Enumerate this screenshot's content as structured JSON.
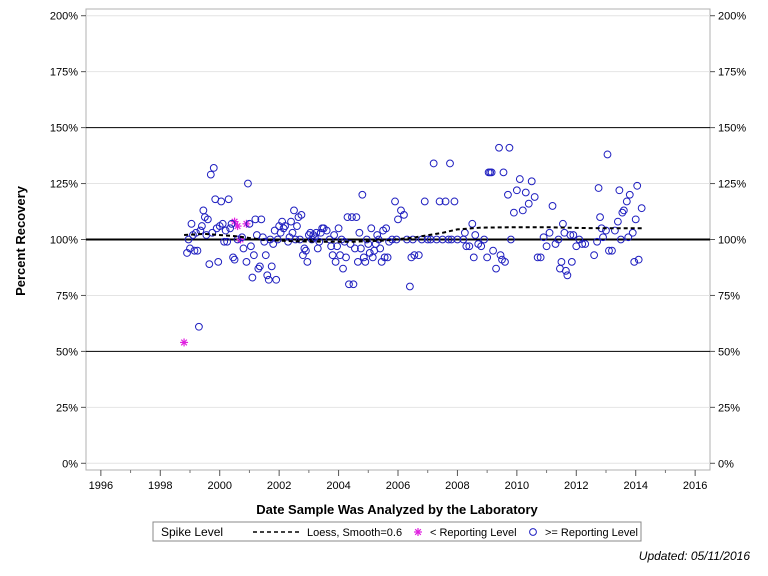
{
  "chart_data": {
    "type": "scatter",
    "xlabel": "Date Sample Was Analyzed by the Laboratory",
    "ylabel": "Percent Recovery",
    "xlim": [
      1995.5,
      2016.5
    ],
    "ylim": [
      -3,
      203
    ],
    "x_ticks": [
      1996,
      1998,
      2000,
      2002,
      2004,
      2006,
      2008,
      2010,
      2012,
      2014,
      2016
    ],
    "y_ticks": [
      0,
      25,
      50,
      75,
      100,
      125,
      150,
      175,
      200
    ],
    "y_tick_labels": [
      "0%",
      "25%",
      "50%",
      "75%",
      "100%",
      "125%",
      "150%",
      "175%",
      "200%"
    ],
    "reference_lines": {
      "spike_level": 100,
      "limits": [
        50,
        150
      ]
    },
    "legend": {
      "title": "Spike Level",
      "position": "bottom",
      "entries": [
        {
          "key": "loess",
          "label": "Loess, Smooth=0.6"
        },
        {
          "key": "below",
          "label": "< Reporting Level"
        },
        {
          "key": "above",
          "label": ">= Reporting Level"
        }
      ]
    },
    "colors": {
      "above": "#2020c0",
      "below": "#e020e0",
      "loess": "#000000",
      "reference": "#000000"
    },
    "series": [
      {
        "name": "< Reporting Level",
        "marker": "asterisk",
        "points": [
          [
            1998.8,
            54
          ],
          [
            2000.5,
            108
          ],
          [
            2000.6,
            106
          ],
          [
            2000.7,
            100
          ],
          [
            2000.9,
            107
          ]
        ]
      },
      {
        "name": ">= Reporting Level",
        "marker": "circle",
        "points": [
          [
            1998.9,
            94
          ],
          [
            1998.95,
            100
          ],
          [
            1999.0,
            96
          ],
          [
            1999.05,
            107
          ],
          [
            1999.1,
            102
          ],
          [
            1999.15,
            95
          ],
          [
            1999.2,
            103
          ],
          [
            1999.25,
            95
          ],
          [
            1999.3,
            61
          ],
          [
            1999.35,
            104
          ],
          [
            1999.4,
            106
          ],
          [
            1999.45,
            113
          ],
          [
            1999.5,
            110
          ],
          [
            1999.55,
            102
          ],
          [
            1999.6,
            109
          ],
          [
            1999.65,
            89
          ],
          [
            1999.7,
            129
          ],
          [
            1999.75,
            103
          ],
          [
            1999.8,
            132
          ],
          [
            1999.85,
            118
          ],
          [
            1999.9,
            105
          ],
          [
            1999.95,
            90
          ],
          [
            2000.0,
            106
          ],
          [
            2000.05,
            117
          ],
          [
            2000.1,
            107
          ],
          [
            2000.15,
            99
          ],
          [
            2000.2,
            104
          ],
          [
            2000.25,
            99
          ],
          [
            2000.3,
            118
          ],
          [
            2000.35,
            105
          ],
          [
            2000.4,
            107
          ],
          [
            2000.45,
            92
          ],
          [
            2000.5,
            91
          ],
          [
            2000.6,
            100
          ],
          [
            2000.75,
            101
          ],
          [
            2000.8,
            96
          ],
          [
            2000.9,
            90
          ],
          [
            2000.95,
            125
          ],
          [
            2001.0,
            107
          ],
          [
            2001.05,
            97
          ],
          [
            2001.1,
            83
          ],
          [
            2001.15,
            93
          ],
          [
            2001.2,
            109
          ],
          [
            2001.25,
            102
          ],
          [
            2001.3,
            87
          ],
          [
            2001.35,
            88
          ],
          [
            2001.4,
            109
          ],
          [
            2001.45,
            101
          ],
          [
            2001.5,
            99
          ],
          [
            2001.55,
            93
          ],
          [
            2001.6,
            84
          ],
          [
            2001.65,
            82
          ],
          [
            2001.7,
            100
          ],
          [
            2001.75,
            88
          ],
          [
            2001.8,
            98
          ],
          [
            2001.85,
            104
          ],
          [
            2001.9,
            82
          ],
          [
            2001.95,
            100
          ],
          [
            2002.0,
            106
          ],
          [
            2002.05,
            103
          ],
          [
            2002.1,
            108
          ],
          [
            2002.15,
            105
          ],
          [
            2002.2,
            106
          ],
          [
            2002.3,
            99
          ],
          [
            2002.35,
            101
          ],
          [
            2002.4,
            108
          ],
          [
            2002.45,
            103
          ],
          [
            2002.5,
            113
          ],
          [
            2002.55,
            100
          ],
          [
            2002.6,
            106
          ],
          [
            2002.65,
            110
          ],
          [
            2002.7,
            100
          ],
          [
            2002.75,
            111
          ],
          [
            2002.8,
            93
          ],
          [
            2002.85,
            96
          ],
          [
            2002.9,
            95
          ],
          [
            2002.95,
            90
          ],
          [
            2003.0,
            102
          ],
          [
            2003.05,
            103
          ],
          [
            2003.1,
            100
          ],
          [
            2003.15,
            102
          ],
          [
            2003.2,
            101
          ],
          [
            2003.25,
            103
          ],
          [
            2003.3,
            96
          ],
          [
            2003.35,
            99
          ],
          [
            2003.4,
            103
          ],
          [
            2003.45,
            105
          ],
          [
            2003.5,
            105
          ],
          [
            2003.6,
            104
          ],
          [
            2003.7,
            100
          ],
          [
            2003.75,
            97
          ],
          [
            2003.8,
            93
          ],
          [
            2003.85,
            102
          ],
          [
            2003.9,
            90
          ],
          [
            2003.95,
            97
          ],
          [
            2004.0,
            105
          ],
          [
            2004.05,
            93
          ],
          [
            2004.1,
            100
          ],
          [
            2004.15,
            87
          ],
          [
            2004.2,
            99
          ],
          [
            2004.25,
            92
          ],
          [
            2004.3,
            110
          ],
          [
            2004.35,
            80
          ],
          [
            2004.4,
            98
          ],
          [
            2004.45,
            110
          ],
          [
            2004.5,
            80
          ],
          [
            2004.55,
            96
          ],
          [
            2004.6,
            110
          ],
          [
            2004.65,
            90
          ],
          [
            2004.7,
            103
          ],
          [
            2004.75,
            96
          ],
          [
            2004.8,
            120
          ],
          [
            2004.85,
            92
          ],
          [
            2004.9,
            90
          ],
          [
            2004.95,
            100
          ],
          [
            2005.0,
            98
          ],
          [
            2005.05,
            94
          ],
          [
            2005.1,
            105
          ],
          [
            2005.15,
            92
          ],
          [
            2005.2,
            95
          ],
          [
            2005.25,
            98
          ],
          [
            2005.3,
            102
          ],
          [
            2005.35,
            100
          ],
          [
            2005.4,
            96
          ],
          [
            2005.45,
            90
          ],
          [
            2005.5,
            104
          ],
          [
            2005.55,
            92
          ],
          [
            2005.6,
            105
          ],
          [
            2005.65,
            92
          ],
          [
            2005.7,
            99
          ],
          [
            2005.8,
            100
          ],
          [
            2005.9,
            117
          ],
          [
            2005.95,
            100
          ],
          [
            2006.0,
            109
          ],
          [
            2006.1,
            113
          ],
          [
            2006.2,
            111
          ],
          [
            2006.3,
            100
          ],
          [
            2006.4,
            79
          ],
          [
            2006.45,
            92
          ],
          [
            2006.5,
            100
          ],
          [
            2006.55,
            93
          ],
          [
            2006.7,
            93
          ],
          [
            2006.8,
            100
          ],
          [
            2006.9,
            117
          ],
          [
            2007.0,
            100
          ],
          [
            2007.1,
            100
          ],
          [
            2007.2,
            134
          ],
          [
            2007.3,
            100
          ],
          [
            2007.4,
            117
          ],
          [
            2007.5,
            100
          ],
          [
            2007.6,
            117
          ],
          [
            2007.7,
            100
          ],
          [
            2007.75,
            134
          ],
          [
            2007.8,
            100
          ],
          [
            2007.9,
            117
          ],
          [
            2008.0,
            100
          ],
          [
            2008.2,
            100
          ],
          [
            2008.25,
            103
          ],
          [
            2008.3,
            97
          ],
          [
            2008.4,
            97
          ],
          [
            2008.5,
            107
          ],
          [
            2008.55,
            92
          ],
          [
            2008.6,
            102
          ],
          [
            2008.7,
            98
          ],
          [
            2008.8,
            97
          ],
          [
            2008.9,
            100
          ],
          [
            2009.0,
            92
          ],
          [
            2009.05,
            130
          ],
          [
            2009.1,
            130
          ],
          [
            2009.15,
            130
          ],
          [
            2009.2,
            95
          ],
          [
            2009.3,
            87
          ],
          [
            2009.4,
            141
          ],
          [
            2009.45,
            93
          ],
          [
            2009.5,
            91
          ],
          [
            2009.55,
            130
          ],
          [
            2009.6,
            90
          ],
          [
            2009.7,
            120
          ],
          [
            2009.75,
            141
          ],
          [
            2009.8,
            100
          ],
          [
            2009.9,
            112
          ],
          [
            2010.0,
            122
          ],
          [
            2010.1,
            127
          ],
          [
            2010.2,
            113
          ],
          [
            2010.3,
            121
          ],
          [
            2010.4,
            116
          ],
          [
            2010.5,
            126
          ],
          [
            2010.6,
            119
          ],
          [
            2010.7,
            92
          ],
          [
            2010.8,
            92
          ],
          [
            2010.9,
            101
          ],
          [
            2011.0,
            97
          ],
          [
            2011.1,
            103
          ],
          [
            2011.2,
            115
          ],
          [
            2011.3,
            98
          ],
          [
            2011.4,
            100
          ],
          [
            2011.45,
            87
          ],
          [
            2011.5,
            90
          ],
          [
            2011.55,
            107
          ],
          [
            2011.6,
            103
          ],
          [
            2011.65,
            86
          ],
          [
            2011.7,
            84
          ],
          [
            2011.8,
            102
          ],
          [
            2011.85,
            90
          ],
          [
            2011.9,
            102
          ],
          [
            2012.0,
            97
          ],
          [
            2012.1,
            100
          ],
          [
            2012.2,
            98
          ],
          [
            2012.3,
            98
          ],
          [
            2012.6,
            93
          ],
          [
            2012.7,
            99
          ],
          [
            2012.75,
            123
          ],
          [
            2012.8,
            110
          ],
          [
            2012.85,
            105
          ],
          [
            2012.9,
            101
          ],
          [
            2013.0,
            104
          ],
          [
            2013.05,
            138
          ],
          [
            2013.1,
            95
          ],
          [
            2013.2,
            95
          ],
          [
            2013.3,
            104
          ],
          [
            2013.4,
            108
          ],
          [
            2013.45,
            122
          ],
          [
            2013.5,
            100
          ],
          [
            2013.55,
            112
          ],
          [
            2013.6,
            113
          ],
          [
            2013.7,
            117
          ],
          [
            2013.75,
            101
          ],
          [
            2013.8,
            120
          ],
          [
            2013.9,
            103
          ],
          [
            2013.95,
            90
          ],
          [
            2014.0,
            109
          ],
          [
            2014.05,
            124
          ],
          [
            2014.1,
            91
          ],
          [
            2014.2,
            114
          ]
        ]
      }
    ],
    "loess": [
      [
        1998.8,
        102
      ],
      [
        1999.5,
        102.5
      ],
      [
        2000.5,
        101.5
      ],
      [
        2001.5,
        99.8
      ],
      [
        2002.5,
        99.2
      ],
      [
        2003.5,
        99
      ],
      [
        2004.5,
        99
      ],
      [
        2005.5,
        99.5
      ],
      [
        2006.5,
        100.8
      ],
      [
        2007.5,
        103
      ],
      [
        2008.0,
        104.5
      ],
      [
        2008.8,
        105.3
      ],
      [
        2010.0,
        105.5
      ],
      [
        2011.0,
        105.5
      ],
      [
        2012.0,
        105.2
      ],
      [
        2013.0,
        105
      ],
      [
        2014.2,
        105
      ]
    ]
  },
  "footnote": "Updated: 05/11/2016"
}
